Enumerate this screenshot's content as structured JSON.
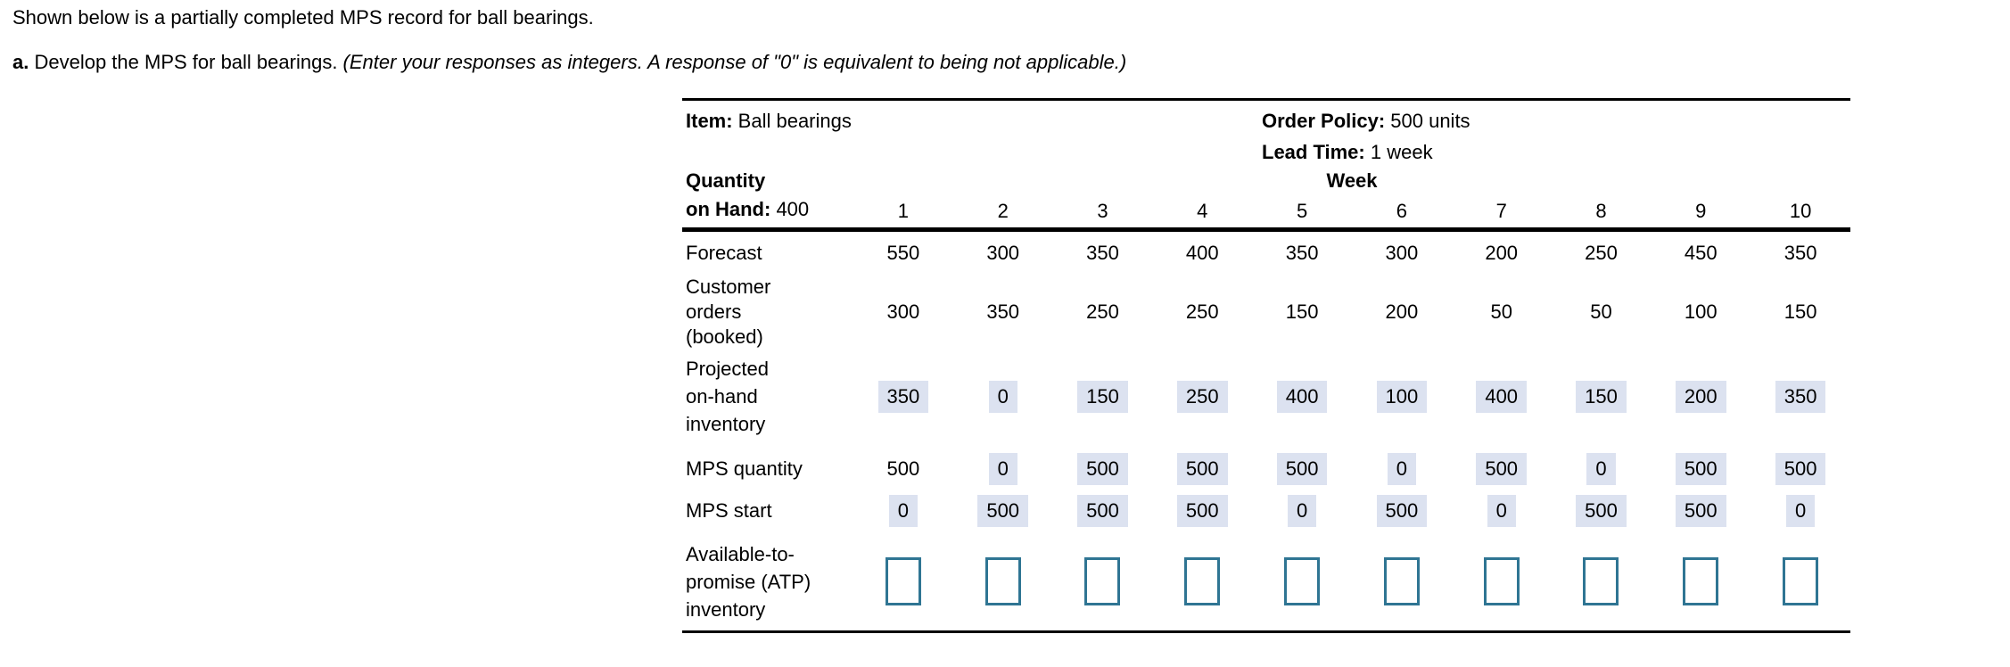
{
  "instructions": {
    "intro": "Shown below is a partially completed MPS record for ball bearings.",
    "part_label": "a.",
    "part_text": " Develop the MPS for ball bearings. ",
    "part_note": "(Enter your responses as integers. A response of \"0\" is equivalent to being not applicable.)"
  },
  "mps_table": {
    "item": {
      "label": "Item:",
      "value": " Ball bearings"
    },
    "order_policy": {
      "label": "Order Policy:",
      "value": " 500 units"
    },
    "lead_time": {
      "label": "Lead Time:",
      "value": " 1 week"
    },
    "quantity_on_hand": {
      "label_line1": "Quantity",
      "label_line2": "on Hand:",
      "value": " 400"
    },
    "week_header": "Week",
    "weeks": [
      "1",
      "2",
      "3",
      "4",
      "5",
      "6",
      "7",
      "8",
      "9",
      "10"
    ],
    "rows": [
      {
        "name": "forecast-row",
        "label_lines": [
          "Forecast"
        ],
        "cell_kind": "static",
        "values": [
          "550",
          "300",
          "350",
          "400",
          "350",
          "300",
          "200",
          "250",
          "450",
          "350"
        ],
        "filled": [
          false,
          false,
          false,
          false,
          false,
          false,
          false,
          false,
          false,
          false
        ]
      },
      {
        "name": "customer-orders-row",
        "label_lines": [
          "Customer",
          "orders",
          "(booked)"
        ],
        "cell_kind": "static",
        "values": [
          "300",
          "350",
          "250",
          "250",
          "150",
          "200",
          "50",
          "50",
          "100",
          "150"
        ],
        "filled": [
          false,
          false,
          false,
          false,
          false,
          false,
          false,
          false,
          false,
          false
        ]
      },
      {
        "name": "projected-on-hand-row",
        "label_lines": [
          "Projected",
          "on-hand",
          "inventory"
        ],
        "cell_kind": "input-filled",
        "values": [
          "350",
          "0",
          "150",
          "250",
          "400",
          "100",
          "400",
          "150",
          "200",
          "350"
        ],
        "filled": [
          true,
          true,
          true,
          true,
          true,
          true,
          true,
          true,
          true,
          true
        ]
      },
      {
        "name": "mps-quantity-row",
        "label_lines": [
          "MPS quantity"
        ],
        "cell_kind": "input-filled",
        "values": [
          "500",
          "0",
          "500",
          "500",
          "500",
          "0",
          "500",
          "0",
          "500",
          "500"
        ],
        "filled": [
          false,
          true,
          true,
          true,
          true,
          true,
          true,
          true,
          true,
          true
        ]
      },
      {
        "name": "mps-start-row",
        "label_lines": [
          "MPS start"
        ],
        "cell_kind": "input-filled",
        "values": [
          "0",
          "500",
          "500",
          "500",
          "0",
          "500",
          "0",
          "500",
          "500",
          "0"
        ],
        "filled": [
          true,
          true,
          true,
          true,
          true,
          true,
          true,
          true,
          true,
          true
        ]
      },
      {
        "name": "atp-row",
        "label_lines": [
          "Available-to-",
          "promise (ATP)",
          "inventory"
        ],
        "cell_kind": "empty-input",
        "values": [
          "",
          "",
          "",
          "",
          "",
          "",
          "",
          "",
          "",
          ""
        ],
        "filled": [
          false,
          false,
          false,
          false,
          false,
          false,
          false,
          false,
          false,
          false
        ]
      }
    ]
  },
  "colors": {
    "highlight_bg": "#dce2f0",
    "input_border": "#2f7593"
  }
}
